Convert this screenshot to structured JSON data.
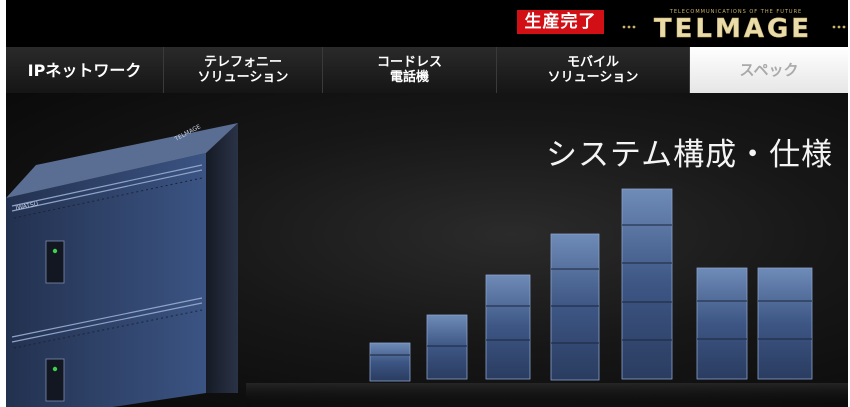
{
  "header": {
    "badge_text": "生産完了",
    "logo_text": "TELMAGE",
    "logo_tagline": "TELECOMMUNICATIONS OF THE FUTURE",
    "product_brand_text": "IWATSU",
    "product_logo_text": "TELMAGE"
  },
  "nav": {
    "items": [
      {
        "label": "IPネットワーク"
      },
      {
        "label": "テレフォニー\nソリューション"
      },
      {
        "label": "コードレス\n電話機"
      },
      {
        "label": "モバイル\nソリューション"
      },
      {
        "label": "スペック"
      }
    ]
  },
  "hero": {
    "title": "システム構成・仕様"
  },
  "colors": {
    "badge_red": "#d10f14",
    "header_black": "#000000",
    "logo_gold": "#c9b26a",
    "unit_blue": "#3d5684"
  }
}
